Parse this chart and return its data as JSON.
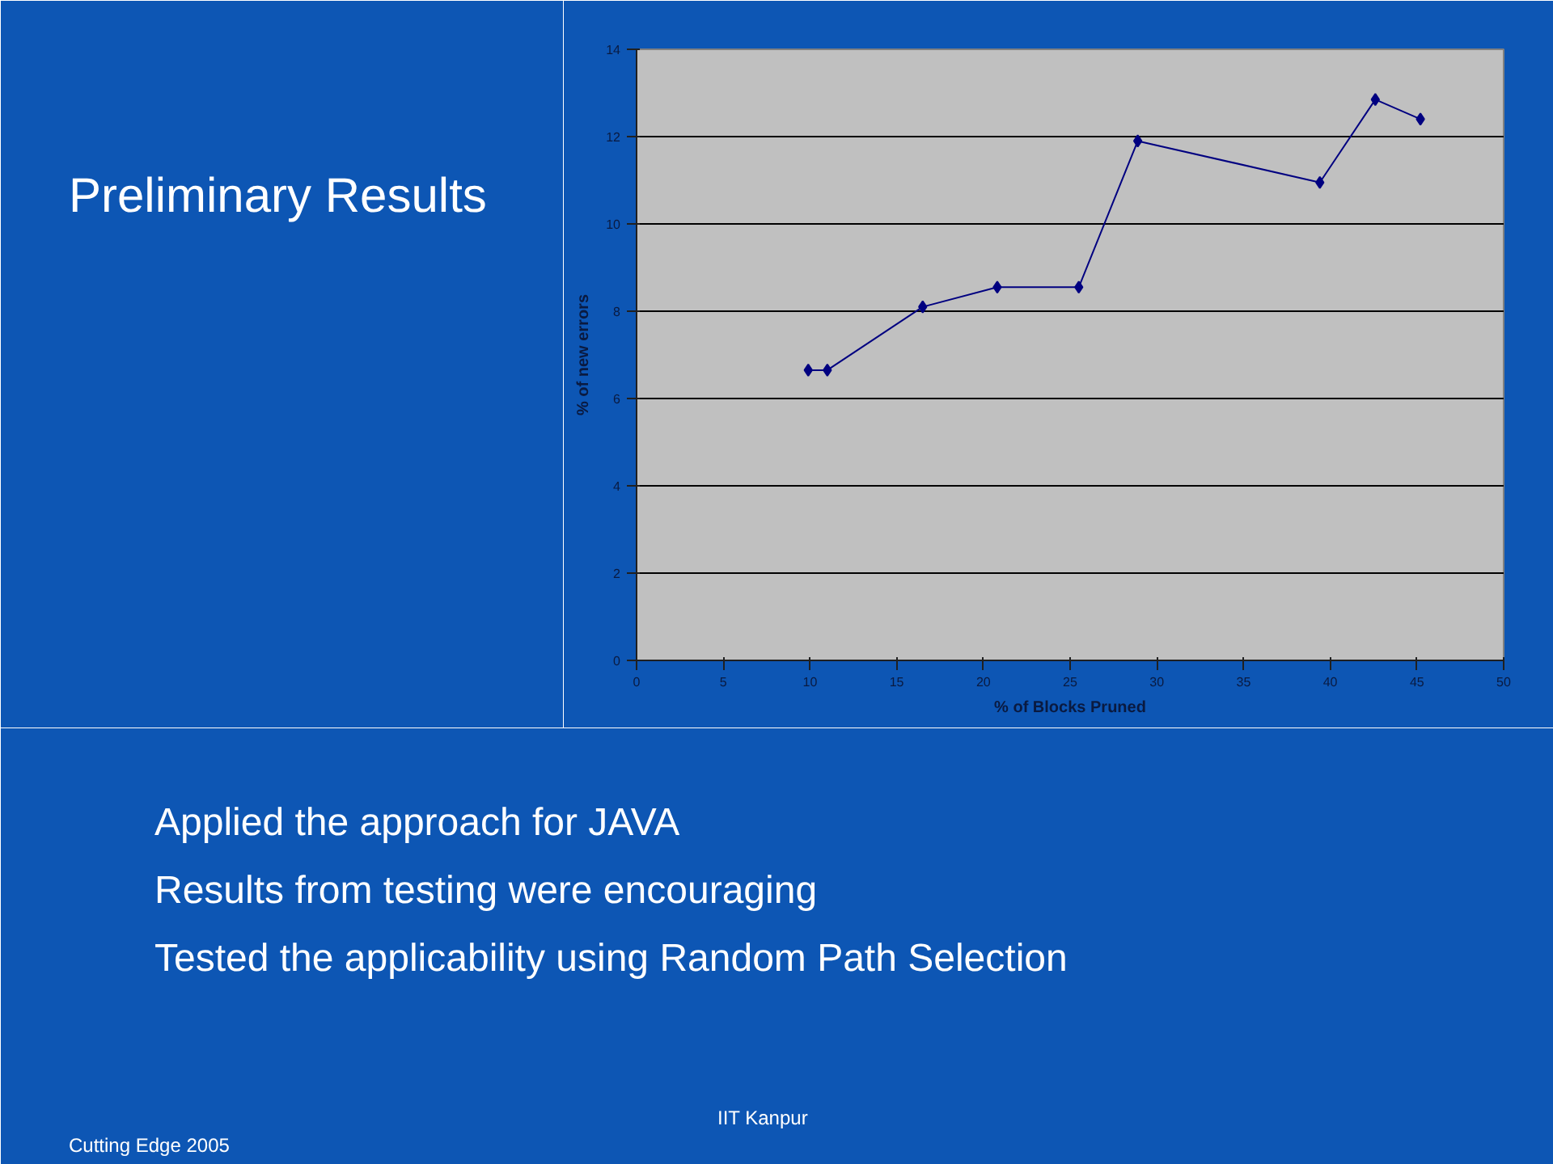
{
  "chart_data": {
    "type": "line",
    "title": "Preliminary Results",
    "xlabel": "% of Blocks Pruned",
    "ylabel": "% of new errors",
    "x": [
      9.9,
      11.0,
      16.5,
      20.8,
      25.5,
      28.9,
      39.4,
      42.6,
      45.2
    ],
    "series": [
      {
        "color": "#000080",
        "values": [
          6.65,
          6.65,
          8.1,
          8.55,
          8.55,
          11.9,
          10.95,
          12.85,
          12.4
        ]
      }
    ],
    "xlim": [
      0,
      50
    ],
    "xticks": [
      0,
      5,
      10,
      15,
      20,
      25,
      30,
      35,
      40,
      45,
      50
    ],
    "ylim": [
      0,
      14
    ],
    "yticks": [
      0,
      2,
      4,
      6,
      8,
      10,
      12,
      14
    ],
    "grid": "y",
    "marker": "diamond",
    "line_style": "solid",
    "annotations": [
      "Applied the approach for JAVA",
      "Results from testing were encouraging",
      "Tested the applicability using Random Path Selection",
      "IIT Kanpur",
      "Cutting Edge 2005"
    ]
  }
}
